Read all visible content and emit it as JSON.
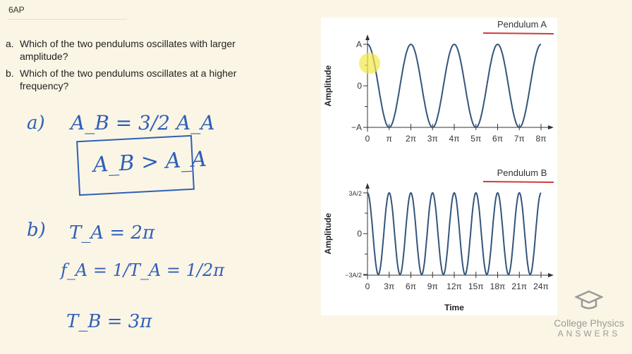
{
  "header": {
    "code": "6AP"
  },
  "questions": [
    {
      "letter": "a.",
      "text_line1": "Which of the two pendulums oscillates with larger",
      "text_line2": "amplitude?"
    },
    {
      "letter": "b.",
      "text_line1": "Which of the two pendulums oscillates at a higher",
      "text_line2": "frequency?"
    }
  ],
  "handwriting": {
    "part_a_label": "a)",
    "part_a_eq": "A_B = 3/2 A_A",
    "part_a_boxed": "A_B > A_A",
    "part_b_label": "b)",
    "line1": "T_A = 2π",
    "line2": "f_A = 1/T_A = 1/2π",
    "line3": "T_B = 3π",
    "ink_color": "#2f5fb8",
    "underline_color": "#d03a3a"
  },
  "logo": {
    "line1": "College Physics",
    "line2": "ANSWERS",
    "icon": "graduation-cap-icon"
  },
  "chart_data": [
    {
      "type": "line",
      "title": "Pendulum A",
      "ylabel": "Amplitude",
      "xlabel": "",
      "x_ticks": [
        "0",
        "π",
        "2π",
        "3π",
        "4π",
        "5π",
        "6π",
        "7π",
        "8π"
      ],
      "y_ticks": [
        "A",
        "0",
        "−A"
      ],
      "xlim_pi": [
        0,
        8
      ],
      "ylim": [
        -1,
        1
      ],
      "function": "A cos(t)",
      "amplitude": 1,
      "period_pi": 2,
      "line_color": "#34557a"
    },
    {
      "type": "line",
      "title": "Pendulum B",
      "ylabel": "Amplitude",
      "xlabel": "Time",
      "x_ticks": [
        "0",
        "3π",
        "6π",
        "9π",
        "12π",
        "15π",
        "18π",
        "21π",
        "24π"
      ],
      "y_ticks": [
        "3A/2",
        "0",
        "−3A/2"
      ],
      "xlim_pi": [
        0,
        24
      ],
      "ylim": [
        -1.5,
        1.5
      ],
      "function": "3A/2 cos(2t/3)",
      "amplitude": 1.5,
      "period_pi": 3,
      "line_color": "#34557a"
    }
  ]
}
